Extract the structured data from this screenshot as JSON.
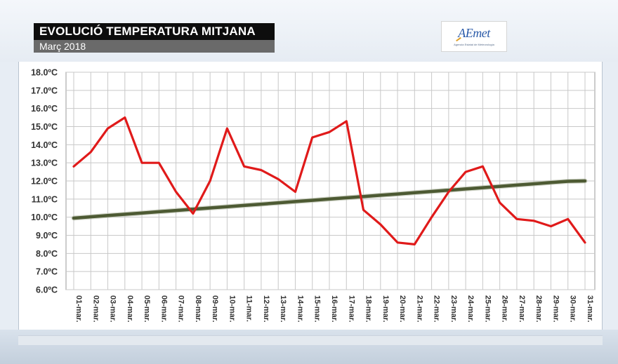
{
  "header": {
    "title": "EVOLUCIÓ TEMPERATURA MITJANA",
    "subtitle": "Març 2018"
  },
  "logo": {
    "text": "AEmet",
    "subtext": "Agencia Estatal de Meteorología"
  },
  "colors": {
    "series_daily": "#e01a1a",
    "series_normal": "#4d5a33",
    "grid": "#c8c8c8",
    "title_bg": "#0d0d0d",
    "subtitle_bg": "#6a6a6a"
  },
  "chart_data": {
    "type": "line",
    "title": "EVOLUCIÓ TEMPERATURA MITJANA",
    "subtitle": "Març 2018",
    "xlabel": "",
    "ylabel": "",
    "ylim": [
      6.0,
      18.0
    ],
    "ytick_step": 1.0,
    "ytick_labels": [
      "6.0ºC",
      "7.0ºC",
      "8.0ºC",
      "9.0ºC",
      "10.0ºC",
      "11.0ºC",
      "12.0ºC",
      "13.0ºC",
      "14.0ºC",
      "15.0ºC",
      "16.0ºC",
      "17.0ºC",
      "18.0ºC"
    ],
    "grid": true,
    "legend": "none",
    "categories": [
      "01-mar.",
      "02-mar.",
      "03-mar.",
      "04-mar.",
      "05-mar.",
      "06-mar.",
      "07-mar.",
      "08-mar.",
      "09-mar.",
      "10-mar.",
      "11-mar.",
      "12-mar.",
      "13-mar.",
      "14-mar.",
      "15-mar.",
      "16-mar.",
      "17-mar.",
      "18-mar.",
      "19-mar.",
      "20-mar.",
      "21-mar.",
      "22-mar.",
      "23-mar.",
      "24-mar.",
      "25-mar.",
      "26-mar.",
      "27-mar.",
      "28-mar.",
      "29-mar.",
      "30-mar.",
      "31-mar."
    ],
    "series": [
      {
        "values": [
          12.8,
          13.6,
          14.9,
          15.5,
          13.0,
          13.0,
          11.4,
          10.2,
          12.0,
          14.9,
          12.8,
          12.6,
          12.1,
          11.4,
          14.4,
          14.7,
          15.3,
          10.4,
          9.6,
          8.6,
          8.5,
          10.0,
          11.4,
          12.5,
          12.8,
          10.8,
          9.9,
          9.8,
          9.5,
          9.9,
          8.6
        ]
      },
      {
        "values": [
          9.95,
          10.02,
          10.09,
          10.16,
          10.23,
          10.3,
          10.37,
          10.44,
          10.51,
          10.58,
          10.65,
          10.72,
          10.79,
          10.86,
          10.93,
          11.0,
          11.07,
          11.14,
          11.21,
          11.28,
          11.35,
          11.42,
          11.49,
          11.56,
          11.63,
          11.7,
          11.77,
          11.84,
          11.91,
          11.98,
          12.0
        ]
      }
    ]
  }
}
